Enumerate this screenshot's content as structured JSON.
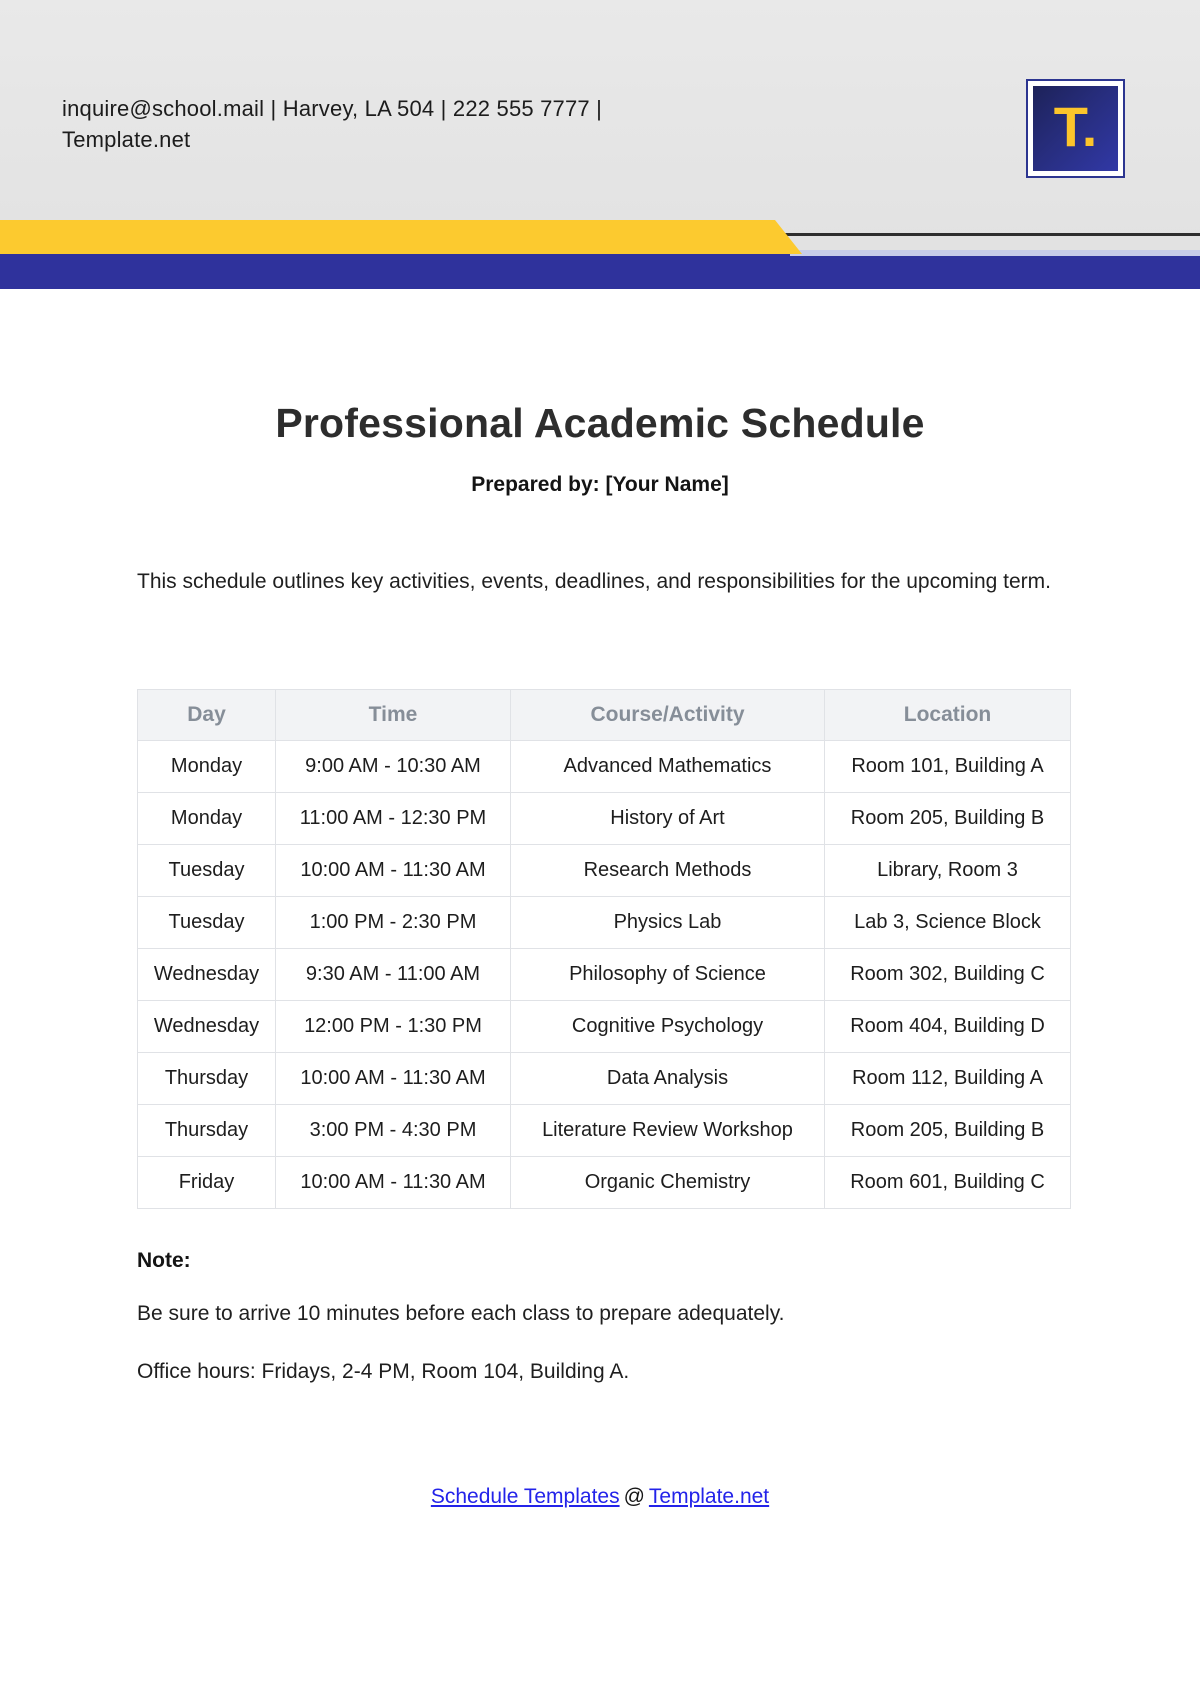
{
  "theme": {
    "accent_yellow": "#fcca2f",
    "accent_blue": "#2f329c",
    "lavender_strip": "#c8cce9",
    "header_gray": "#e5e5e5",
    "table_header_bg": "#f2f3f5",
    "table_header_text": "#868e98",
    "table_border": "#e0e2e6",
    "link_blue": "#2323e9",
    "logo_yellow": "#fcc52b",
    "logo_navy": "#1d2259"
  },
  "header": {
    "contact": "inquire@school.mail | Harvey, LA 504 | 222 555 7777 | Template.net",
    "logo_text": "T."
  },
  "document": {
    "title": "Professional Academic Schedule",
    "prepared_by": "Prepared by: [Your Name]",
    "intro": "This schedule outlines key activities, events, deadlines, and responsibilities for the upcoming term."
  },
  "table": {
    "headers": [
      "Day",
      "Time",
      "Course/Activity",
      "Location"
    ],
    "rows": [
      [
        "Monday",
        "9:00 AM - 10:30 AM",
        "Advanced Mathematics",
        "Room 101, Building A"
      ],
      [
        "Monday",
        "11:00 AM - 12:30 PM",
        "History of Art",
        "Room 205, Building B"
      ],
      [
        "Tuesday",
        "10:00 AM - 11:30 AM",
        "Research Methods",
        "Library, Room 3"
      ],
      [
        "Tuesday",
        "1:00 PM - 2:30 PM",
        "Physics Lab",
        "Lab 3, Science Block"
      ],
      [
        "Wednesday",
        "9:30 AM - 11:00 AM",
        "Philosophy of Science",
        "Room 302, Building C"
      ],
      [
        "Wednesday",
        "12:00 PM - 1:30 PM",
        "Cognitive Psychology",
        "Room 404, Building D"
      ],
      [
        "Thursday",
        "10:00 AM - 11:30 AM",
        "Data Analysis",
        "Room 112, Building A"
      ],
      [
        "Thursday",
        "3:00 PM - 4:30 PM",
        "Literature Review Workshop",
        "Room 205, Building B"
      ],
      [
        "Friday",
        "10:00 AM - 11:30 AM",
        "Organic Chemistry",
        "Room 601, Building C"
      ]
    ]
  },
  "note": {
    "heading": "Note:",
    "line1": "Be sure to arrive 10 minutes before each class to prepare adequately.",
    "line2": "Office hours: Fridays, 2-4 PM, Room 104, Building A."
  },
  "footer": {
    "link1": "Schedule Templates",
    "separator": "@",
    "link2": "Template.net"
  }
}
